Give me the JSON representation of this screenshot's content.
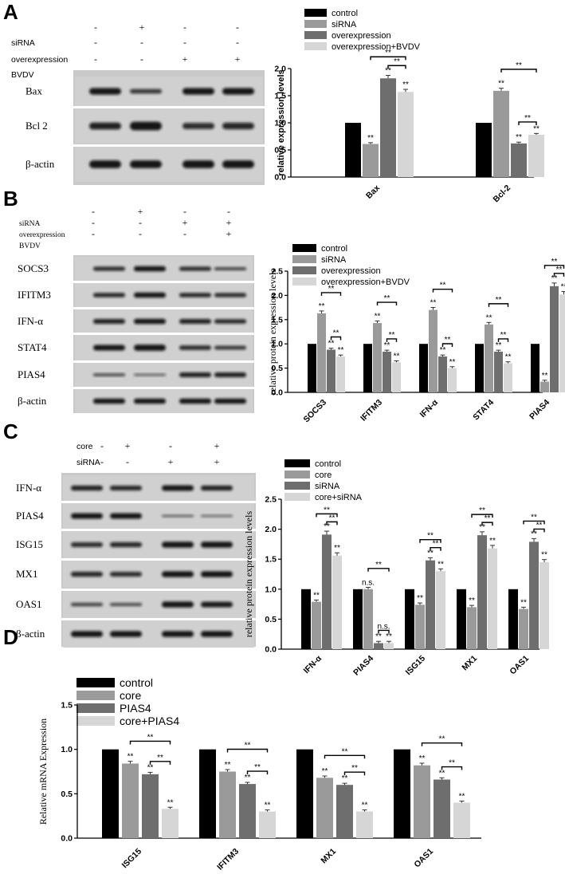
{
  "colors": {
    "control": "#000000",
    "c2": "#9a9a9a",
    "c3": "#6e6e6e",
    "c4": "#d6d6d6"
  },
  "panels": [
    {
      "label": "A",
      "cond_rows": [
        {
          "label": "",
          "signs": [
            "-",
            "+",
            "-",
            "-"
          ]
        },
        {
          "label": "siRNA",
          "signs": [
            "-",
            "-",
            "-",
            "-"
          ]
        },
        {
          "label": "overexpression",
          "signs": [
            "-",
            "-",
            "+",
            "+"
          ]
        },
        {
          "label": "BVDV",
          "signs": [
            "-",
            "-",
            "-",
            "+"
          ]
        }
      ],
      "blot_rows": [
        "Bax",
        "Bcl 2",
        "β-actin"
      ]
    },
    {
      "label": "B",
      "cond_rows": [
        {
          "label": "",
          "signs": [
            "-",
            "+",
            "-",
            "-"
          ]
        },
        {
          "label": "siRNA",
          "signs": [
            "-",
            "-",
            "+",
            "+"
          ]
        },
        {
          "label": "overexpression",
          "signs": [
            "-",
            "-",
            "-",
            "+"
          ]
        },
        {
          "label": "BVDV",
          "signs": [
            "",
            "",
            "",
            ""
          ]
        }
      ],
      "blot_rows": [
        "SOCS3",
        "IFITM3",
        "IFN-α",
        "STAT4",
        "PIAS4",
        "β-actin"
      ]
    },
    {
      "label": "C",
      "cond_rows": [
        {
          "label": "core",
          "signs": [
            "-",
            "+",
            "-",
            "+"
          ]
        },
        {
          "label": "siRNA",
          "signs": [
            "-",
            "-",
            "+",
            "+"
          ]
        }
      ],
      "blot_rows": [
        "IFN-α",
        "PIAS4",
        "ISG15",
        "MX1",
        "OAS1",
        "β-actin"
      ]
    },
    {
      "label": "D"
    }
  ],
  "chart_data": [
    {
      "id": "A",
      "type": "bar",
      "ylabel": "relative expression levels",
      "ylim": [
        0,
        2.0
      ],
      "yticks": [
        "0.0",
        "0.5",
        "1.0",
        "1.5",
        "2.0"
      ],
      "categories": [
        "Bax",
        "Bcl-2"
      ],
      "series": [
        {
          "name": "control",
          "values": [
            1.0,
            1.0
          ],
          "sig": [
            "",
            ""
          ]
        },
        {
          "name": "siRNA",
          "values": [
            0.61,
            1.59
          ],
          "sig": [
            "**",
            "**"
          ]
        },
        {
          "name": "overexpression",
          "values": [
            1.82,
            0.62
          ],
          "sig": [
            "**",
            "**"
          ]
        },
        {
          "name": "overexpression+BVDV",
          "values": [
            1.57,
            0.78
          ],
          "sig": [
            "**",
            "**"
          ]
        }
      ],
      "brackets": [
        {
          "cat": 0,
          "from": 1,
          "to": 3,
          "label": "**"
        },
        {
          "cat": 0,
          "from": 2,
          "to": 3,
          "label": "**"
        },
        {
          "cat": 1,
          "from": 1,
          "to": 3,
          "label": "**"
        },
        {
          "cat": 1,
          "from": 2,
          "to": 3,
          "label": "**"
        }
      ]
    },
    {
      "id": "B",
      "type": "bar",
      "ylabel": "relative protein expression levels",
      "ylim": [
        0,
        2.5
      ],
      "yticks": [
        "0.0",
        "0.5",
        "1.0",
        "1.5",
        "2.0",
        "2.5"
      ],
      "categories": [
        "SOCS3",
        "IFITM3",
        "IFN-α",
        "STAT4",
        "PIAS4"
      ],
      "series": [
        {
          "name": "control",
          "values": [
            1.0,
            1.0,
            1.0,
            1.0,
            1.0
          ],
          "sig": [
            "",
            "",
            "",
            "",
            ""
          ]
        },
        {
          "name": "siRNA",
          "values": [
            1.63,
            1.43,
            1.7,
            1.4,
            0.22
          ],
          "sig": [
            "**",
            "**",
            "**",
            "**",
            "**"
          ]
        },
        {
          "name": "overexpression",
          "values": [
            0.88,
            0.84,
            0.74,
            0.84,
            2.19
          ],
          "sig": [
            "**",
            "**",
            "**",
            "**",
            "**"
          ]
        },
        {
          "name": "overexpression+BVDV",
          "values": [
            0.74,
            0.62,
            0.5,
            0.6,
            2.02
          ],
          "sig": [
            "**",
            "**",
            "**",
            "**",
            "**"
          ]
        }
      ],
      "brackets": [
        {
          "cat": 0,
          "from": 1,
          "to": 3,
          "label": "**"
        },
        {
          "cat": 0,
          "from": 2,
          "to": 3,
          "label": "**"
        },
        {
          "cat": 1,
          "from": 1,
          "to": 3,
          "label": "**"
        },
        {
          "cat": 1,
          "from": 2,
          "to": 3,
          "label": "**"
        },
        {
          "cat": 2,
          "from": 1,
          "to": 3,
          "label": "**"
        },
        {
          "cat": 2,
          "from": 2,
          "to": 3,
          "label": "**"
        },
        {
          "cat": 3,
          "from": 1,
          "to": 3,
          "label": "**"
        },
        {
          "cat": 3,
          "from": 2,
          "to": 3,
          "label": "**"
        },
        {
          "cat": 4,
          "from": 1,
          "to": 3,
          "label": "**"
        },
        {
          "cat": 4,
          "from": 2,
          "to": 3,
          "label": "**"
        }
      ]
    },
    {
      "id": "C",
      "type": "bar",
      "ylabel": "relative protein expression levels",
      "ylim": [
        0,
        2.5
      ],
      "yticks": [
        "0.0",
        "0.5",
        "1.0",
        "1.5",
        "2.0",
        "2.5"
      ],
      "categories": [
        "IFN-α",
        "PIAS4",
        "ISG15",
        "MX1",
        "OAS1"
      ],
      "series": [
        {
          "name": "control",
          "values": [
            1.0,
            1.0,
            1.0,
            1.0,
            1.0
          ],
          "sig": [
            "",
            "",
            "",
            "",
            ""
          ]
        },
        {
          "name": "core",
          "values": [
            0.79,
            1.0,
            0.74,
            0.7,
            0.67
          ],
          "sig": [
            "**",
            "n.s.",
            "**",
            "**",
            "**"
          ]
        },
        {
          "name": "siRNA",
          "values": [
            1.91,
            0.1,
            1.48,
            1.9,
            1.79
          ],
          "sig": [
            "**",
            "**",
            "**",
            "**",
            "**"
          ]
        },
        {
          "name": "core+siRNA",
          "values": [
            1.56,
            0.1,
            1.3,
            1.68,
            1.45
          ],
          "sig": [
            "**",
            "**",
            "**",
            "**",
            "**"
          ]
        }
      ],
      "brackets": [
        {
          "cat": 0,
          "from": 1,
          "to": 3,
          "label": "**"
        },
        {
          "cat": 0,
          "from": 2,
          "to": 3,
          "label": "**"
        },
        {
          "cat": 1,
          "from": 1,
          "to": 3,
          "label": "**"
        },
        {
          "cat": 1,
          "from": 2,
          "to": 3,
          "label": "n.s."
        },
        {
          "cat": 2,
          "from": 1,
          "to": 3,
          "label": "**"
        },
        {
          "cat": 2,
          "from": 2,
          "to": 3,
          "label": "**"
        },
        {
          "cat": 3,
          "from": 1,
          "to": 3,
          "label": "**"
        },
        {
          "cat": 3,
          "from": 2,
          "to": 3,
          "label": "**"
        },
        {
          "cat": 4,
          "from": 1,
          "to": 3,
          "label": "**"
        },
        {
          "cat": 4,
          "from": 2,
          "to": 3,
          "label": "**"
        }
      ]
    },
    {
      "id": "D",
      "type": "bar",
      "ylabel": "Relative mRNA Expression",
      "ylim": [
        0,
        1.5
      ],
      "yticks": [
        "0.0",
        "0.5",
        "1.0",
        "1.5"
      ],
      "categories": [
        "ISG15",
        "IFITM3",
        "MX1",
        "OAS1"
      ],
      "series": [
        {
          "name": "control",
          "values": [
            1.0,
            1.0,
            1.0,
            1.0
          ],
          "sig": [
            "",
            "",
            "",
            ""
          ]
        },
        {
          "name": "core",
          "values": [
            0.84,
            0.75,
            0.68,
            0.82
          ],
          "sig": [
            "**",
            "**",
            "**",
            "**"
          ]
        },
        {
          "name": "PIAS4",
          "values": [
            0.72,
            0.61,
            0.6,
            0.66
          ],
          "sig": [
            "**",
            "**",
            "**",
            "**"
          ]
        },
        {
          "name": "core+PIAS4",
          "values": [
            0.33,
            0.3,
            0.3,
            0.4
          ],
          "sig": [
            "**",
            "**",
            "**",
            "**"
          ]
        }
      ],
      "brackets": [
        {
          "cat": 0,
          "from": 1,
          "to": 3,
          "label": "**"
        },
        {
          "cat": 0,
          "from": 2,
          "to": 3,
          "label": "**"
        },
        {
          "cat": 1,
          "from": 1,
          "to": 3,
          "label": "**"
        },
        {
          "cat": 1,
          "from": 2,
          "to": 3,
          "label": "**"
        },
        {
          "cat": 2,
          "from": 1,
          "to": 3,
          "label": "**"
        },
        {
          "cat": 2,
          "from": 2,
          "to": 3,
          "label": "**"
        },
        {
          "cat": 3,
          "from": 1,
          "to": 3,
          "label": "**"
        },
        {
          "cat": 3,
          "from": 2,
          "to": 3,
          "label": "**"
        }
      ]
    }
  ]
}
